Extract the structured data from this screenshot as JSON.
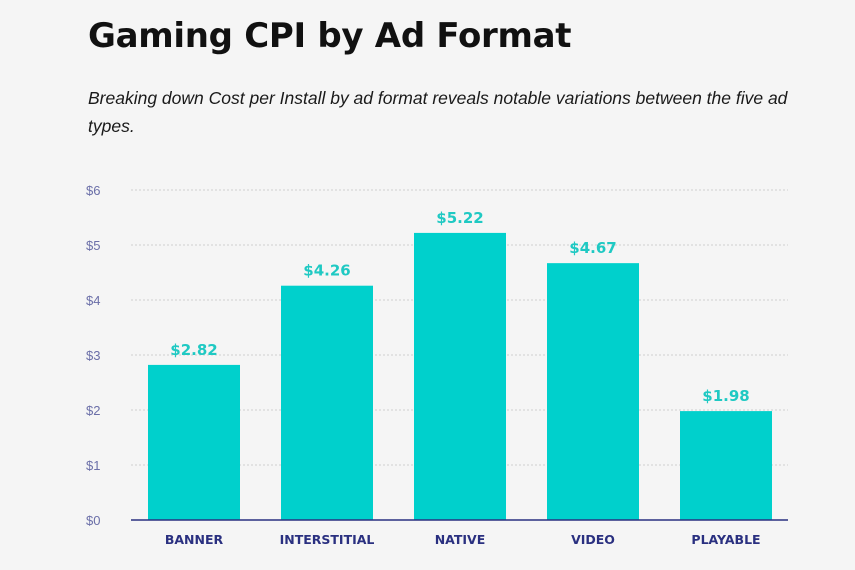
{
  "header": {
    "title": "Gaming CPI by Ad Format",
    "subtitle": "Breaking down Cost per Install by ad format reveals notable variations between the five ad types."
  },
  "colors": {
    "bar": "#00d0cc",
    "value_label": "#1fc9c3",
    "axis": "#2a3080",
    "grid": "#cfcfcf"
  },
  "chart_data": {
    "type": "bar",
    "title": "Gaming CPI by Ad Format",
    "subtitle": "Breaking down Cost per Install by ad format reveals notable variations between the five ad types.",
    "categories": [
      "BANNER",
      "INTERSTITIAL",
      "NATIVE",
      "VIDEO",
      "PLAYABLE"
    ],
    "values": [
      2.82,
      4.26,
      5.22,
      4.67,
      1.98
    ],
    "value_labels": [
      "$2.82",
      "$4.26",
      "$5.22",
      "$4.67",
      "$1.98"
    ],
    "yticks": [
      0,
      1,
      2,
      3,
      4,
      5,
      6
    ],
    "ytick_labels": [
      "$0",
      "$1",
      "$2",
      "$3",
      "$4",
      "$5",
      "$6"
    ],
    "xlabel": "",
    "ylabel": "",
    "ylim": [
      0,
      6
    ],
    "grid": true,
    "legend": "none"
  }
}
